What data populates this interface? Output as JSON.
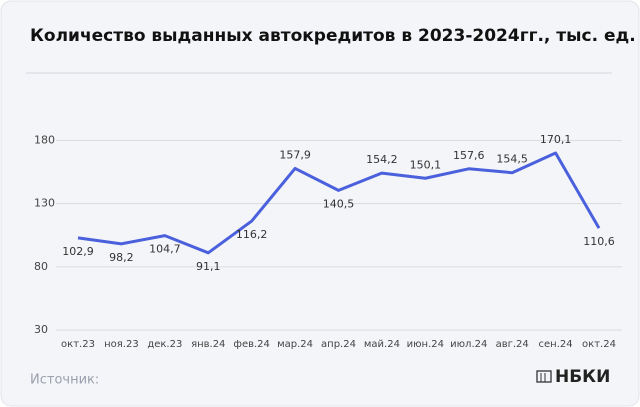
{
  "chart_data": {
    "type": "line",
    "title": "Количество выданных автокредитов в 2023-2024гг., тыс. ед.",
    "categories": [
      "окт.23",
      "ноя.23",
      "дек.23",
      "янв.24",
      "фев.24",
      "мар.24",
      "апр.24",
      "май.24",
      "июн.24",
      "июл.24",
      "авг.24",
      "сен.24",
      "окт.24"
    ],
    "values": [
      102.9,
      98.2,
      104.7,
      91.1,
      116.2,
      157.9,
      140.5,
      154.2,
      150.1,
      157.6,
      154.5,
      170.1,
      110.6
    ],
    "value_labels": [
      "102,9",
      "98,2",
      "104,7",
      "91,1",
      "116,2",
      "157,9",
      "140,5",
      "154,2",
      "150,1",
      "157,6",
      "154,5",
      "170,1",
      "110,6"
    ],
    "color": "#4a60dc",
    "ylim": [
      30,
      216
    ],
    "yticks": [
      30,
      80,
      130,
      180
    ],
    "grid": true,
    "source": "Источник:",
    "logo": "НБКИ"
  }
}
